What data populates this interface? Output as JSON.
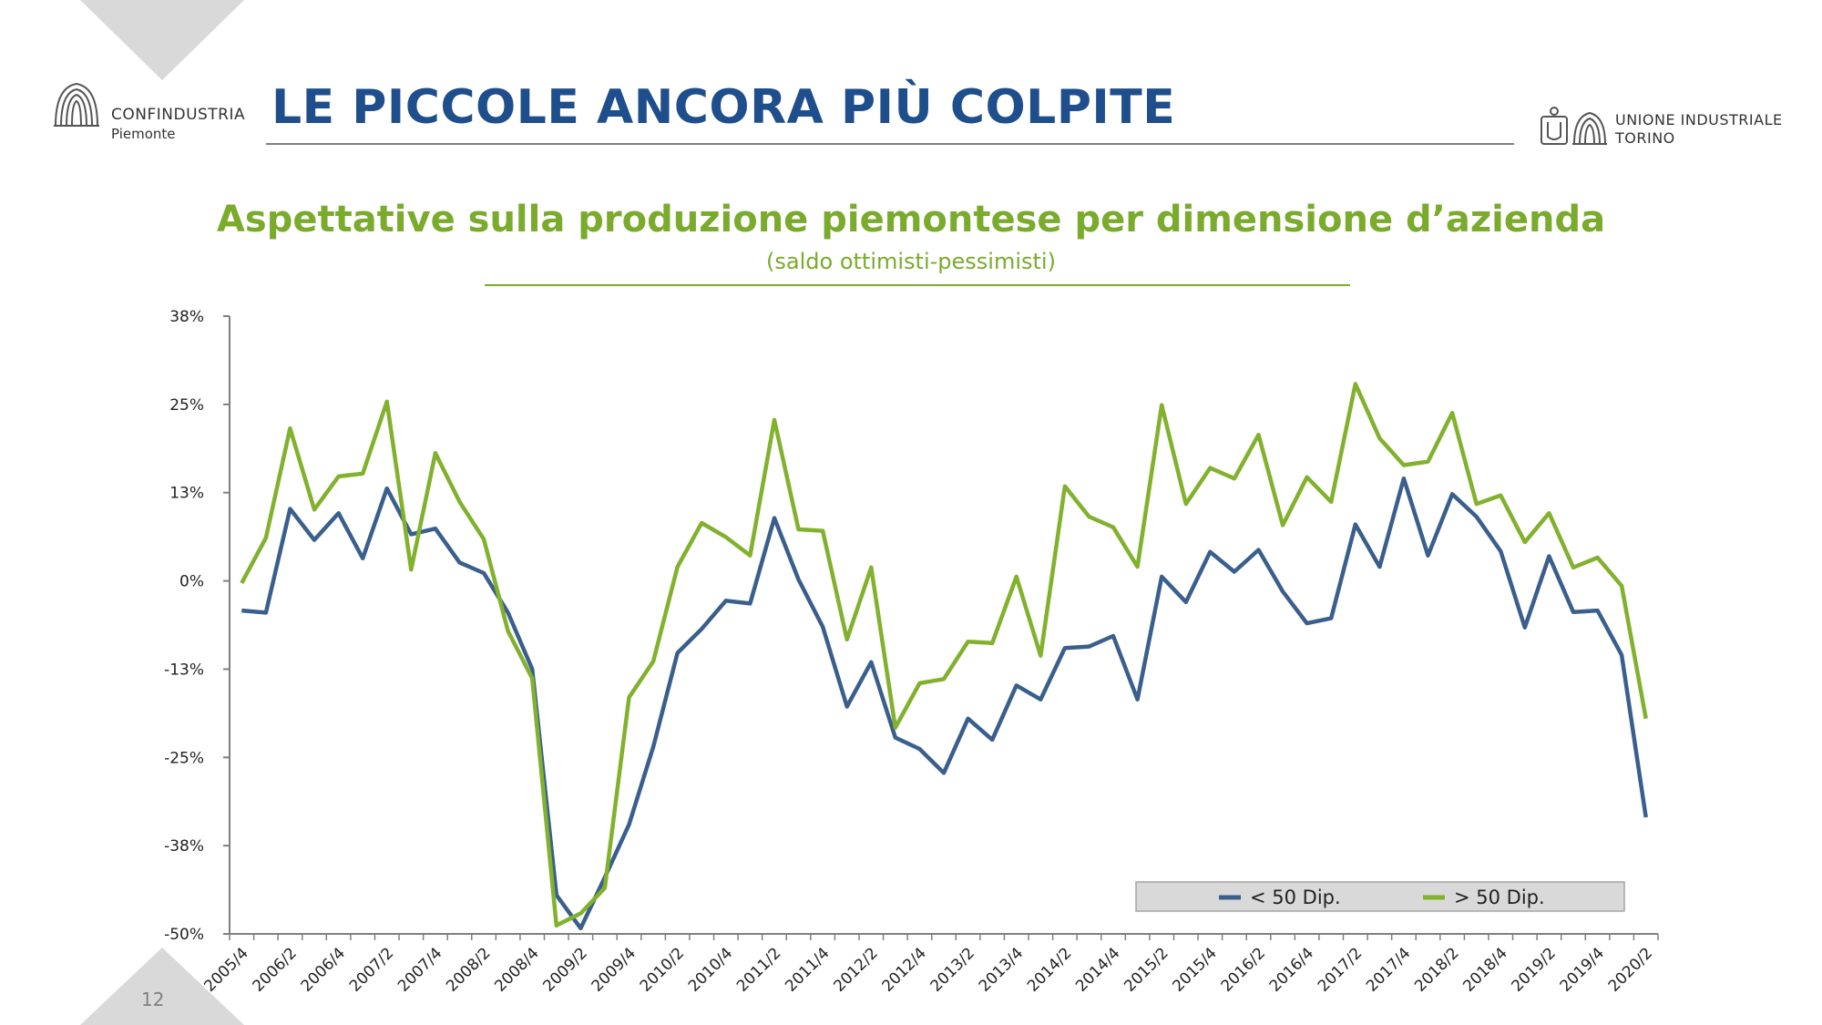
{
  "header": {
    "title": "LE PICCOLE ANCORA PIÙ COLPITE",
    "logo_left": {
      "brand": "CONFINDUSTRIA",
      "region": "Piemonte"
    },
    "logo_right": {
      "line1": "UNIONE INDUSTRIALE",
      "line2": "TORINO"
    }
  },
  "footer": {
    "page_number": "12"
  },
  "colors": {
    "title": "#1f4e8c",
    "accent_green": "#7aab2c",
    "series_small": "#3a5f8c",
    "series_large": "#82b12e"
  },
  "chart_data": {
    "type": "line",
    "title": "Aspettative sulla produzione piemontese per dimensione d’azienda",
    "subtitle": "(saldo ottimisti-pessimisti)",
    "y_tick_labels": [
      "38%",
      "25%",
      "13%",
      "0%",
      "-13%",
      "-25%",
      "-38%",
      "-50%"
    ],
    "x_tick_labels": [
      "2005/4",
      "2006/2",
      "2006/4",
      "2007/2",
      "2007/4",
      "2008/2",
      "2008/4",
      "2009/2",
      "2009/4",
      "2010/2",
      "2010/4",
      "2011/2",
      "2011/4",
      "2012/2",
      "2012/4",
      "2013/2",
      "2013/4",
      "2014/2",
      "2014/4",
      "2015/2",
      "2015/4",
      "2016/2",
      "2016/4",
      "2017/2",
      "2017/4",
      "2018/2",
      "2018/4",
      "2019/2",
      "2019/4",
      "2020/2"
    ],
    "ylim": [
      -50,
      37.5
    ],
    "grid": false,
    "legend_position": "bottom-right",
    "series": [
      {
        "name": "< 50 Dip.",
        "values": [
          -4.2,
          -4.5,
          10.2,
          5.8,
          9.6,
          3.2,
          13.1,
          6.6,
          7.4,
          2.6,
          1.1,
          -4.5,
          -12.5,
          -44.5,
          -49.2,
          -42,
          -34.5,
          -23.5,
          -10.2,
          -6.8,
          -2.8,
          -3.2,
          8.9,
          0.2,
          -6.5,
          -17.8,
          -11.5,
          -22.2,
          -23.8,
          -27.2,
          -19.5,
          -22.5,
          -14.8,
          -16.8,
          -9.5,
          -9.3,
          -7.8,
          -16.8,
          0.6,
          -3,
          4.1,
          1.3,
          4.4,
          -1.5,
          -6,
          -5.3,
          8,
          2,
          14.5,
          3.6,
          12.3,
          9.1,
          4.2,
          -6.6,
          3.5,
          -4.4,
          -4.2,
          -10.5,
          -33.5
        ],
        "color": "#3a5f8c"
      },
      {
        "name": "> 50 Dip.",
        "values": [
          -0.3,
          6.1,
          21.6,
          10.1,
          14.8,
          15.2,
          25.4,
          1.6,
          18.1,
          11.2,
          5.9,
          -7.1,
          -13.8,
          -48.8,
          -47.1,
          -43.5,
          -16.5,
          -11.4,
          2,
          8.2,
          6.2,
          3.6,
          22.8,
          7.3,
          7.1,
          -8.3,
          1.9,
          -20.8,
          -14.5,
          -13.9,
          -8.6,
          -8.8,
          0.6,
          -10.6,
          13.4,
          9.1,
          7.6,
          2,
          24.9,
          10.9,
          16,
          14.5,
          20.7,
          7.9,
          14.7,
          11.2,
          27.9,
          20.2,
          16.4,
          16.9,
          23.8,
          10.9,
          12.1,
          5.5,
          9.6,
          1.9,
          3.3,
          -0.7,
          -19.5
        ],
        "color": "#82b12e"
      }
    ]
  }
}
